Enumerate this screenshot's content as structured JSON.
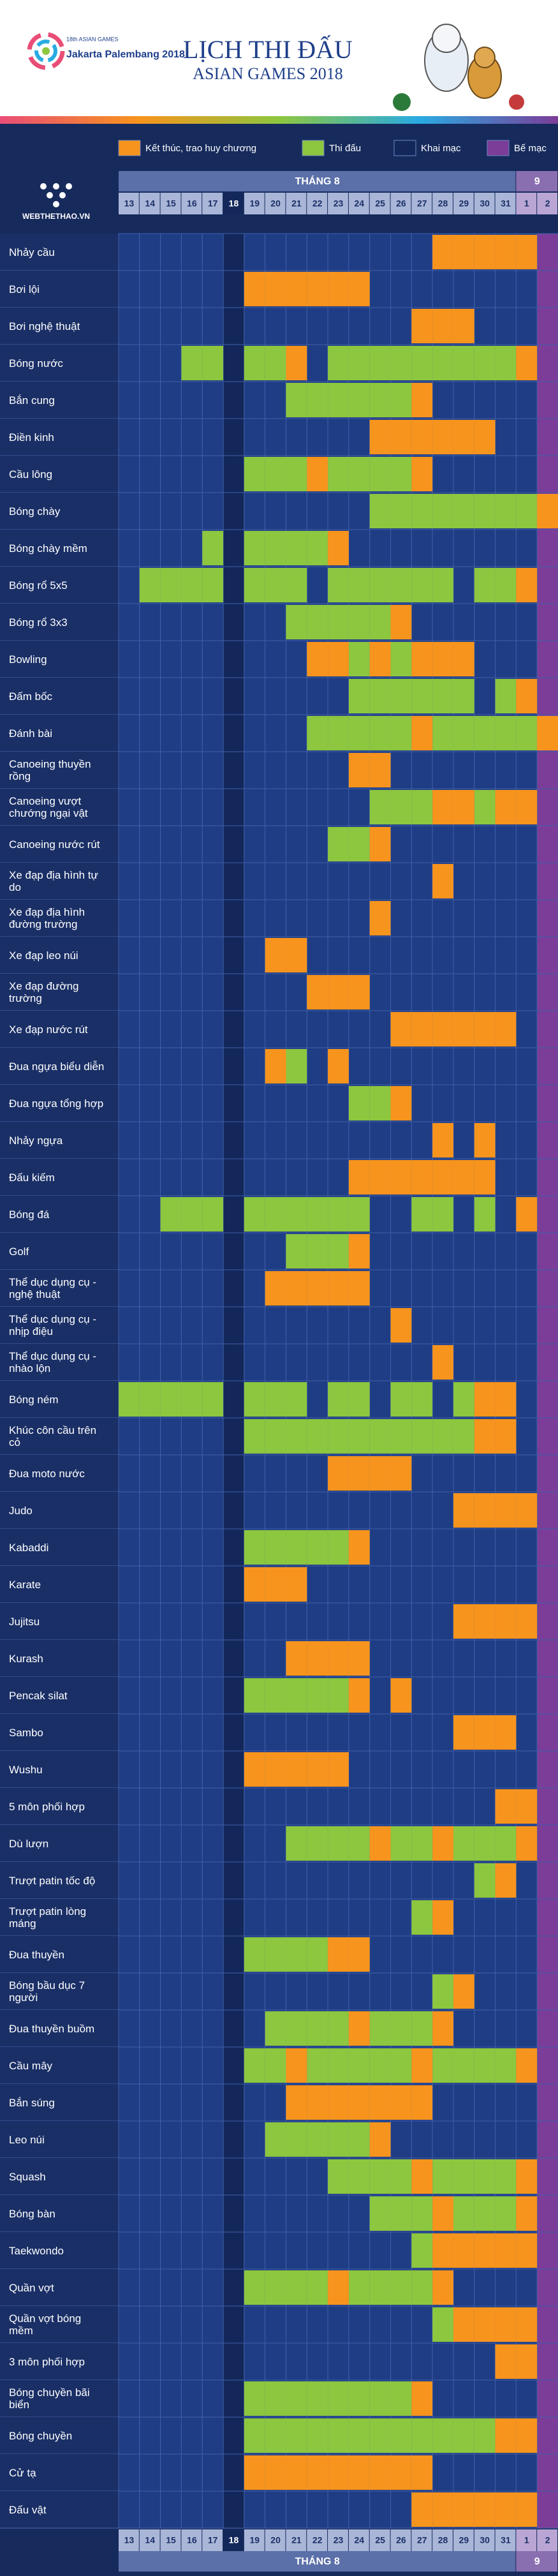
{
  "header": {
    "logo_line1": "18th ASIAN GAMES",
    "logo_line2": "Jakarta Palembang 2018",
    "title": "LỊCH THI ĐẤU",
    "subtitle": "ASIAN GAMES 2018"
  },
  "brand": "WEBTHETHAO.VN",
  "legend": [
    {
      "label": "Kết thúc, trao huy chương",
      "color": "#f7941d"
    },
    {
      "label": "Thi đấu",
      "color": "#8dc63f"
    },
    {
      "label": "Khai mạc",
      "color": "#13275a"
    },
    {
      "label": "Bế mạc",
      "color": "#7b3d98"
    }
  ],
  "months": [
    {
      "label": "THÁNG 8",
      "days": [
        "13",
        "14",
        "15",
        "16",
        "17",
        "18",
        "19",
        "20",
        "21",
        "22",
        "23",
        "24",
        "25",
        "26",
        "27",
        "28",
        "29",
        "30",
        "31"
      ]
    },
    {
      "label": "9",
      "days": [
        "1",
        "2"
      ]
    }
  ],
  "opening_day": "18",
  "closing_day": "2",
  "sports": [
    {
      "name": "Nhảy cầu",
      "competition": [],
      "medal": [
        "28",
        "29",
        "30",
        "31",
        "1"
      ]
    },
    {
      "name": "Bơi lội",
      "competition": [],
      "medal": [
        "19",
        "20",
        "21",
        "22",
        "23",
        "24"
      ]
    },
    {
      "name": "Bơi nghệ thuật",
      "competition": [],
      "medal": [
        "27",
        "28",
        "29"
      ]
    },
    {
      "name": "Bóng nước",
      "competition": [
        "16",
        "17",
        "19",
        "20",
        "23",
        "24",
        "25",
        "26",
        "27",
        "28",
        "29",
        "30",
        "31"
      ],
      "medal": [
        "21",
        "1"
      ]
    },
    {
      "name": "Bắn cung",
      "competition": [
        "21",
        "22",
        "23",
        "24",
        "25",
        "26"
      ],
      "medal": [
        "27"
      ]
    },
    {
      "name": "Điền kinh",
      "competition": [],
      "medal": [
        "25",
        "26",
        "27",
        "28",
        "29",
        "30"
      ]
    },
    {
      "name": "Cầu lông",
      "competition": [
        "19",
        "20",
        "21",
        "23",
        "24",
        "25",
        "26"
      ],
      "medal": [
        "22",
        "27"
      ]
    },
    {
      "name": "Bóng chày",
      "competition": [
        "25",
        "26",
        "27",
        "28",
        "29",
        "30",
        "31",
        "1"
      ],
      "medal": [
        "2"
      ]
    },
    {
      "name": "Bóng chày mềm",
      "competition": [
        "17",
        "19",
        "20",
        "21",
        "22"
      ],
      "medal": [
        "23"
      ]
    },
    {
      "name": "Bóng rổ 5x5",
      "competition": [
        "14",
        "15",
        "16",
        "17",
        "19",
        "20",
        "21",
        "23",
        "24",
        "25",
        "26",
        "27",
        "28",
        "30",
        "31"
      ],
      "medal": [
        "1"
      ]
    },
    {
      "name": "Bóng rổ 3x3",
      "competition": [
        "21",
        "22",
        "23",
        "24",
        "25"
      ],
      "medal": [
        "26"
      ]
    },
    {
      "name": "Bowling",
      "competition": [
        "24",
        "26"
      ],
      "medal": [
        "22",
        "23",
        "25",
        "27",
        "28",
        "29"
      ]
    },
    {
      "name": "Đấm bốc",
      "competition": [
        "24",
        "25",
        "26",
        "27",
        "28",
        "29",
        "31"
      ],
      "medal": [
        "1"
      ]
    },
    {
      "name": "Đánh bài",
      "competition": [
        "22",
        "23",
        "24",
        "25",
        "26",
        "28",
        "29",
        "30",
        "31",
        "1"
      ],
      "medal": [
        "27",
        "2"
      ]
    },
    {
      "name": "Canoeing thuyền rồng",
      "competition": [],
      "medal": [
        "24",
        "25"
      ]
    },
    {
      "name": "Canoeing vượt chướng ngại vật",
      "competition": [
        "25",
        "26",
        "27",
        "30"
      ],
      "medal": [
        "28",
        "29",
        "31",
        "1"
      ]
    },
    {
      "name": "Canoeing nước rút",
      "competition": [
        "23",
        "24"
      ],
      "medal": [
        "25"
      ]
    },
    {
      "name": "Xe đạp địa hình tự do",
      "competition": [],
      "medal": [
        "28"
      ]
    },
    {
      "name": "Xe đạp địa hình đường trường",
      "competition": [],
      "medal": [
        "25"
      ]
    },
    {
      "name": "Xe đạp leo núi",
      "competition": [],
      "medal": [
        "20",
        "21"
      ]
    },
    {
      "name": "Xe đạp đường trường",
      "competition": [],
      "medal": [
        "22",
        "23",
        "24"
      ]
    },
    {
      "name": "Xe đạp nước rút",
      "competition": [],
      "medal": [
        "26",
        "27",
        "28",
        "29",
        "30",
        "31"
      ]
    },
    {
      "name": "Đua ngựa biểu diễn",
      "competition": [
        "21"
      ],
      "medal": [
        "20",
        "23"
      ]
    },
    {
      "name": "Đua ngựa tổng hợp",
      "competition": [
        "24",
        "25"
      ],
      "medal": [
        "26"
      ]
    },
    {
      "name": "Nhảy ngựa",
      "competition": [],
      "medal": [
        "28",
        "30"
      ]
    },
    {
      "name": "Đấu kiếm",
      "competition": [],
      "medal": [
        "24",
        "25",
        "26",
        "27",
        "28",
        "29",
        "30"
      ]
    },
    {
      "name": "Bóng đá",
      "competition": [
        "15",
        "16",
        "17",
        "19",
        "20",
        "21",
        "22",
        "23",
        "24",
        "27",
        "28",
        "30"
      ],
      "medal": [
        "1"
      ]
    },
    {
      "name": "Golf",
      "competition": [
        "21",
        "22",
        "23"
      ],
      "medal": [
        "24"
      ]
    },
    {
      "name": "Thể dục dụng cụ - nghệ thuật",
      "competition": [],
      "medal": [
        "20",
        "21",
        "22",
        "23",
        "24"
      ]
    },
    {
      "name": "Thể dục dụng cụ - nhịp điệu",
      "competition": [],
      "medal": [
        "26"
      ]
    },
    {
      "name": "Thể dục dụng cụ - nhào lộn",
      "competition": [],
      "medal": [
        "28"
      ]
    },
    {
      "name": "Bóng ném",
      "competition": [
        "13",
        "14",
        "15",
        "16",
        "17",
        "19",
        "20",
        "21",
        "23",
        "24",
        "26",
        "27",
        "29"
      ],
      "medal": [
        "30",
        "31"
      ]
    },
    {
      "name": "Khúc côn cầu trên cỏ",
      "competition": [
        "19",
        "20",
        "21",
        "22",
        "23",
        "24",
        "25",
        "26",
        "27",
        "28",
        "29"
      ],
      "medal": [
        "30",
        "31"
      ]
    },
    {
      "name": "Đua moto nước",
      "competition": [],
      "medal": [
        "23",
        "24",
        "25",
        "26"
      ]
    },
    {
      "name": "Judo",
      "competition": [],
      "medal": [
        "29",
        "30",
        "31",
        "1"
      ]
    },
    {
      "name": "Kabaddi",
      "competition": [
        "19",
        "20",
        "21",
        "22",
        "23"
      ],
      "medal": [
        "24"
      ]
    },
    {
      "name": "Karate",
      "competition": [],
      "medal": [
        "19",
        "20",
        "21"
      ]
    },
    {
      "name": "Jujitsu",
      "competition": [],
      "medal": [
        "29",
        "30",
        "31",
        "1"
      ]
    },
    {
      "name": "Kurash",
      "competition": [],
      "medal": [
        "21",
        "22",
        "23",
        "24"
      ]
    },
    {
      "name": "Pencak silat",
      "competition": [
        "19",
        "20",
        "21",
        "22",
        "23"
      ],
      "medal": [
        "24",
        "26"
      ]
    },
    {
      "name": "Sambo",
      "competition": [],
      "medal": [
        "29",
        "30",
        "31"
      ]
    },
    {
      "name": "Wushu",
      "competition": [],
      "medal": [
        "19",
        "20",
        "21",
        "22",
        "23"
      ]
    },
    {
      "name": "5 môn phối hợp",
      "competition": [],
      "medal": [
        "31",
        "1"
      ]
    },
    {
      "name": "Dù lượn",
      "competition": [
        "21",
        "22",
        "23",
        "24",
        "26",
        "27",
        "29",
        "30",
        "31"
      ],
      "medal": [
        "25",
        "28",
        "1"
      ]
    },
    {
      "name": "Trượt patin tốc độ",
      "competition": [
        "30"
      ],
      "medal": [
        "31"
      ]
    },
    {
      "name": "Trượt patin lòng máng",
      "competition": [
        "27"
      ],
      "medal": [
        "28"
      ]
    },
    {
      "name": "Đua thuyền",
      "competition": [
        "19",
        "20",
        "21",
        "22"
      ],
      "medal": [
        "23",
        "24"
      ]
    },
    {
      "name": "Bóng bầu dục 7 người",
      "competition": [
        "28"
      ],
      "medal": [
        "29"
      ]
    },
    {
      "name": "Đua thuyền buồm",
      "competition": [
        "20",
        "21",
        "22",
        "23",
        "25",
        "26",
        "27"
      ],
      "medal": [
        "24",
        "28"
      ]
    },
    {
      "name": "Cầu mây",
      "competition": [
        "19",
        "20",
        "22",
        "23",
        "24",
        "25",
        "26",
        "28",
        "29",
        "30",
        "31"
      ],
      "medal": [
        "21",
        "27",
        "1"
      ]
    },
    {
      "name": "Bắn súng",
      "competition": [],
      "medal": [
        "21",
        "22",
        "23",
        "24",
        "25",
        "26",
        "27"
      ]
    },
    {
      "name": "Leo núi",
      "competition": [
        "20",
        "21",
        "22",
        "23",
        "24"
      ],
      "medal": [
        "25"
      ]
    },
    {
      "name": "Squash",
      "competition": [
        "23",
        "24",
        "25",
        "26",
        "28",
        "29",
        "30",
        "31"
      ],
      "medal": [
        "27",
        "1"
      ]
    },
    {
      "name": "Bóng bàn",
      "competition": [
        "25",
        "26",
        "27",
        "29",
        "30",
        "31"
      ],
      "medal": [
        "28",
        "1"
      ]
    },
    {
      "name": "Taekwondo",
      "competition": [
        "27"
      ],
      "medal": [
        "28",
        "29",
        "30",
        "31",
        "1"
      ]
    },
    {
      "name": "Quần vợt",
      "competition": [
        "19",
        "20",
        "21",
        "22",
        "24",
        "25",
        "26",
        "27"
      ],
      "medal": [
        "23",
        "28"
      ]
    },
    {
      "name": "Quần vợt bóng mềm",
      "competition": [
        "28"
      ],
      "medal": [
        "29",
        "30",
        "31",
        "1"
      ]
    },
    {
      "name": "3 môn phối hợp",
      "competition": [],
      "medal": [
        "31",
        "1"
      ]
    },
    {
      "name": "Bóng chuyền bãi biển",
      "competition": [
        "19",
        "20",
        "21",
        "22",
        "23",
        "24",
        "25",
        "26"
      ],
      "medal": [
        "27"
      ]
    },
    {
      "name": "Bóng chuyền",
      "competition": [
        "19",
        "20",
        "21",
        "22",
        "23",
        "24",
        "25",
        "26",
        "27",
        "28",
        "29",
        "30"
      ],
      "medal": [
        "31",
        "1"
      ]
    },
    {
      "name": "Cử tạ",
      "competition": [],
      "medal": [
        "19",
        "20",
        "21",
        "22",
        "23",
        "24",
        "25",
        "26",
        "27"
      ]
    },
    {
      "name": "Đấu vật",
      "competition": [],
      "medal": [
        "27",
        "28",
        "29",
        "30",
        "31",
        "1"
      ]
    }
  ]
}
